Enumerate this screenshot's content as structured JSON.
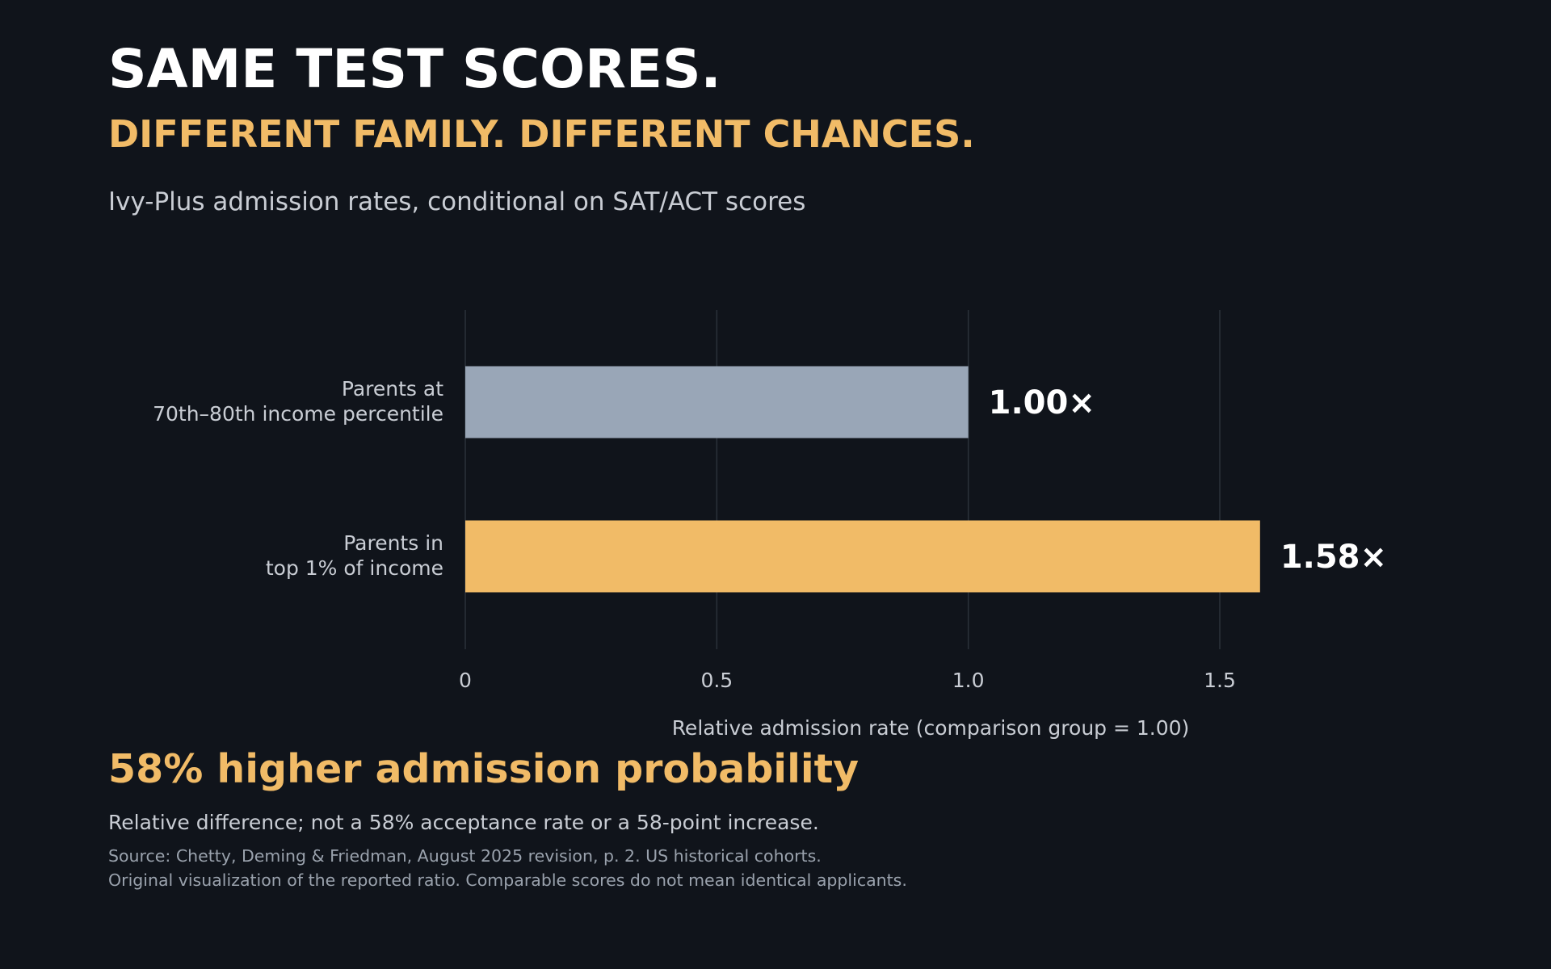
{
  "header": {
    "title": "SAME TEST SCORES.",
    "subtitle": "DIFFERENT FAMILY. DIFFERENT CHANCES.",
    "caption": "Ivy-Plus admission rates, conditional on SAT/ACT scores"
  },
  "chart_data": {
    "type": "bar",
    "orientation": "horizontal",
    "categories": [
      [
        "Parents at",
        "70th–80th income percentile"
      ],
      [
        "Parents in",
        "top 1% of income"
      ]
    ],
    "values": [
      1.0,
      1.58
    ],
    "value_labels": [
      "1.00×",
      "1.58×"
    ],
    "bar_colors": [
      "#99a6b7",
      "#f1bb67"
    ],
    "xlabel": "Relative admission rate (comparison group = 1.00)",
    "xlim": [
      0,
      1.85
    ],
    "xticks": [
      0,
      0.5,
      1.0,
      1.5
    ],
    "xtick_labels": [
      "0",
      "0.5",
      "1.0",
      "1.5"
    ],
    "grid": true
  },
  "footer": {
    "headline": "58% higher admission probability",
    "note": "Relative difference; not a 58% acceptance rate or a 58-point increase.",
    "source_lines": [
      "Source: Chetty, Deming & Friedman, August 2025 revision, p. 2. US historical cohorts.",
      "Original visualization of the reported ratio. Comparable scores do not mean identical applicants."
    ]
  },
  "colors": {
    "background": "#10141b",
    "accent": "#f1bb67",
    "comparison_bar": "#99a6b7",
    "grid": "#2b313a",
    "text_light": "#c9cdd4",
    "text_muted": "#9aa2ad"
  }
}
